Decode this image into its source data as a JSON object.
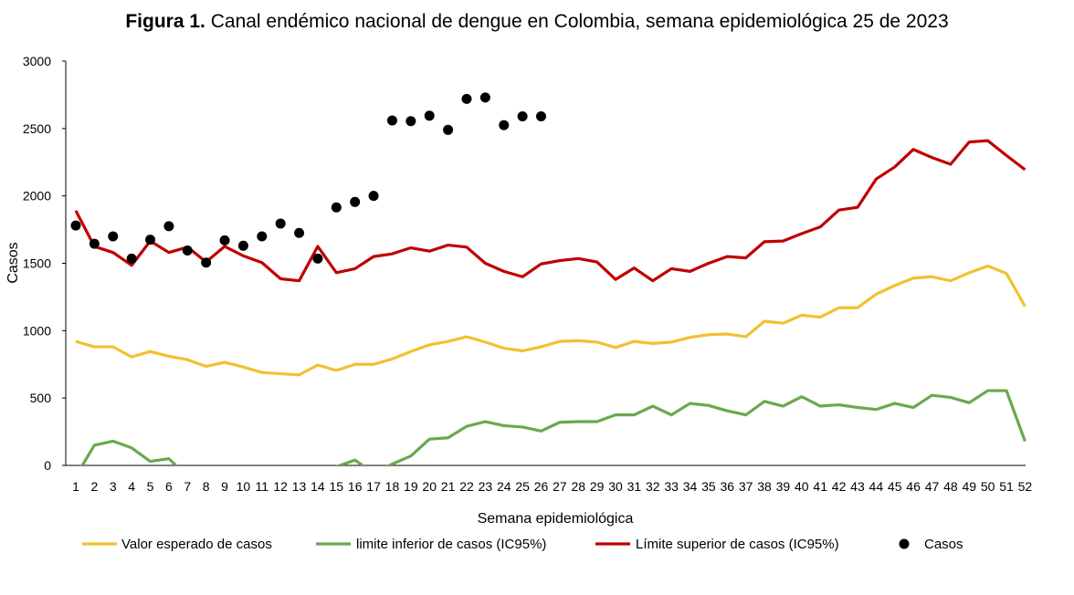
{
  "title_bold": "Figura 1.",
  "title_rest": " Canal endémico nacional de dengue en Colombia, semana epidemiológica 25 de 2023",
  "chart_data": {
    "type": "line",
    "title": "Figura 1. Canal endémico nacional de dengue en Colombia, semana epidemiológica 25 de 2023",
    "xlabel": "Semana epidemiológica",
    "ylabel": "Casos",
    "ylim": [
      0,
      3000
    ],
    "yticks": [
      0,
      500,
      1000,
      1500,
      2000,
      2500,
      3000
    ],
    "x": [
      1,
      2,
      3,
      4,
      5,
      6,
      7,
      8,
      9,
      10,
      11,
      12,
      13,
      14,
      15,
      16,
      17,
      18,
      19,
      20,
      21,
      22,
      23,
      24,
      25,
      26,
      27,
      28,
      29,
      30,
      31,
      32,
      33,
      34,
      35,
      36,
      37,
      38,
      39,
      40,
      41,
      42,
      43,
      44,
      45,
      46,
      47,
      48,
      49,
      50,
      51,
      52
    ],
    "xtick_labels": [
      "1",
      "2",
      "3",
      "4",
      "5",
      "6",
      "7",
      "8",
      "9",
      "10",
      "11",
      "12",
      "13",
      "14",
      "15",
      "16",
      "17",
      "18",
      "19",
      "20",
      "21",
      "22",
      "23",
      "24",
      "25",
      "26",
      "27",
      "28",
      "29",
      "30",
      "31",
      "32",
      "33",
      "34",
      "35",
      "36",
      "37",
      "38",
      "39",
      "40",
      "41",
      "42",
      "43",
      "44",
      "45",
      "46",
      "47",
      "48",
      "49",
      "50",
      "51",
      "52"
    ],
    "grid": false,
    "legend_position": "bottom",
    "series": [
      {
        "name": "Valor esperado de casos",
        "color": "#f2c12e",
        "style": "line",
        "values": [
          920,
          880,
          880,
          805,
          845,
          810,
          785,
          735,
          765,
          730,
          690,
          680,
          672,
          745,
          705,
          750,
          750,
          790,
          845,
          895,
          920,
          955,
          915,
          870,
          850,
          880,
          920,
          925,
          915,
          875,
          920,
          905,
          915,
          950,
          970,
          975,
          955,
          1070,
          1055,
          1115,
          1100,
          1170,
          1170,
          1270,
          1335,
          1390,
          1400,
          1370,
          1430,
          1480,
          1425,
          1180
        ]
      },
      {
        "name": "limite inferior de casos (IC95%)",
        "color": "#6aa84f",
        "style": "line",
        "values": [
          -80,
          150,
          180,
          130,
          30,
          50,
          -80,
          -150,
          -200,
          -200,
          -150,
          -20,
          -20,
          -150,
          -10,
          40,
          -60,
          10,
          70,
          195,
          205,
          290,
          325,
          295,
          285,
          255,
          320,
          325,
          325,
          375,
          375,
          440,
          375,
          460,
          445,
          405,
          375,
          475,
          440,
          510,
          440,
          450,
          430,
          415,
          460,
          430,
          520,
          505,
          465,
          555,
          555,
          180
        ]
      },
      {
        "name": "Límite superior de casos (IC95%)",
        "color": "#c00000",
        "style": "line",
        "values": [
          1890,
          1625,
          1580,
          1485,
          1665,
          1580,
          1620,
          1510,
          1625,
          1555,
          1505,
          1385,
          1370,
          1625,
          1430,
          1460,
          1550,
          1570,
          1615,
          1590,
          1635,
          1620,
          1500,
          1440,
          1400,
          1495,
          1520,
          1535,
          1510,
          1380,
          1465,
          1370,
          1460,
          1440,
          1500,
          1550,
          1540,
          1660,
          1665,
          1720,
          1770,
          1895,
          1915,
          2125,
          2215,
          2345,
          2285,
          2235,
          2400,
          2410,
          2300,
          2195
        ]
      },
      {
        "name": "Casos",
        "color": "#000000",
        "style": "points",
        "x": [
          1,
          2,
          3,
          4,
          5,
          6,
          7,
          8,
          9,
          10,
          11,
          12,
          13,
          14,
          15,
          16,
          17,
          18,
          19,
          20,
          21,
          22,
          23,
          24,
          25,
          26
        ],
        "values": [
          1780,
          1645,
          1700,
          1535,
          1675,
          1775,
          1595,
          1505,
          1670,
          1630,
          1700,
          1795,
          1725,
          1535,
          1915,
          1955,
          2000,
          2560,
          2555,
          2595,
          2490,
          2720,
          2730,
          2525,
          2590,
          2590
        ]
      }
    ]
  }
}
